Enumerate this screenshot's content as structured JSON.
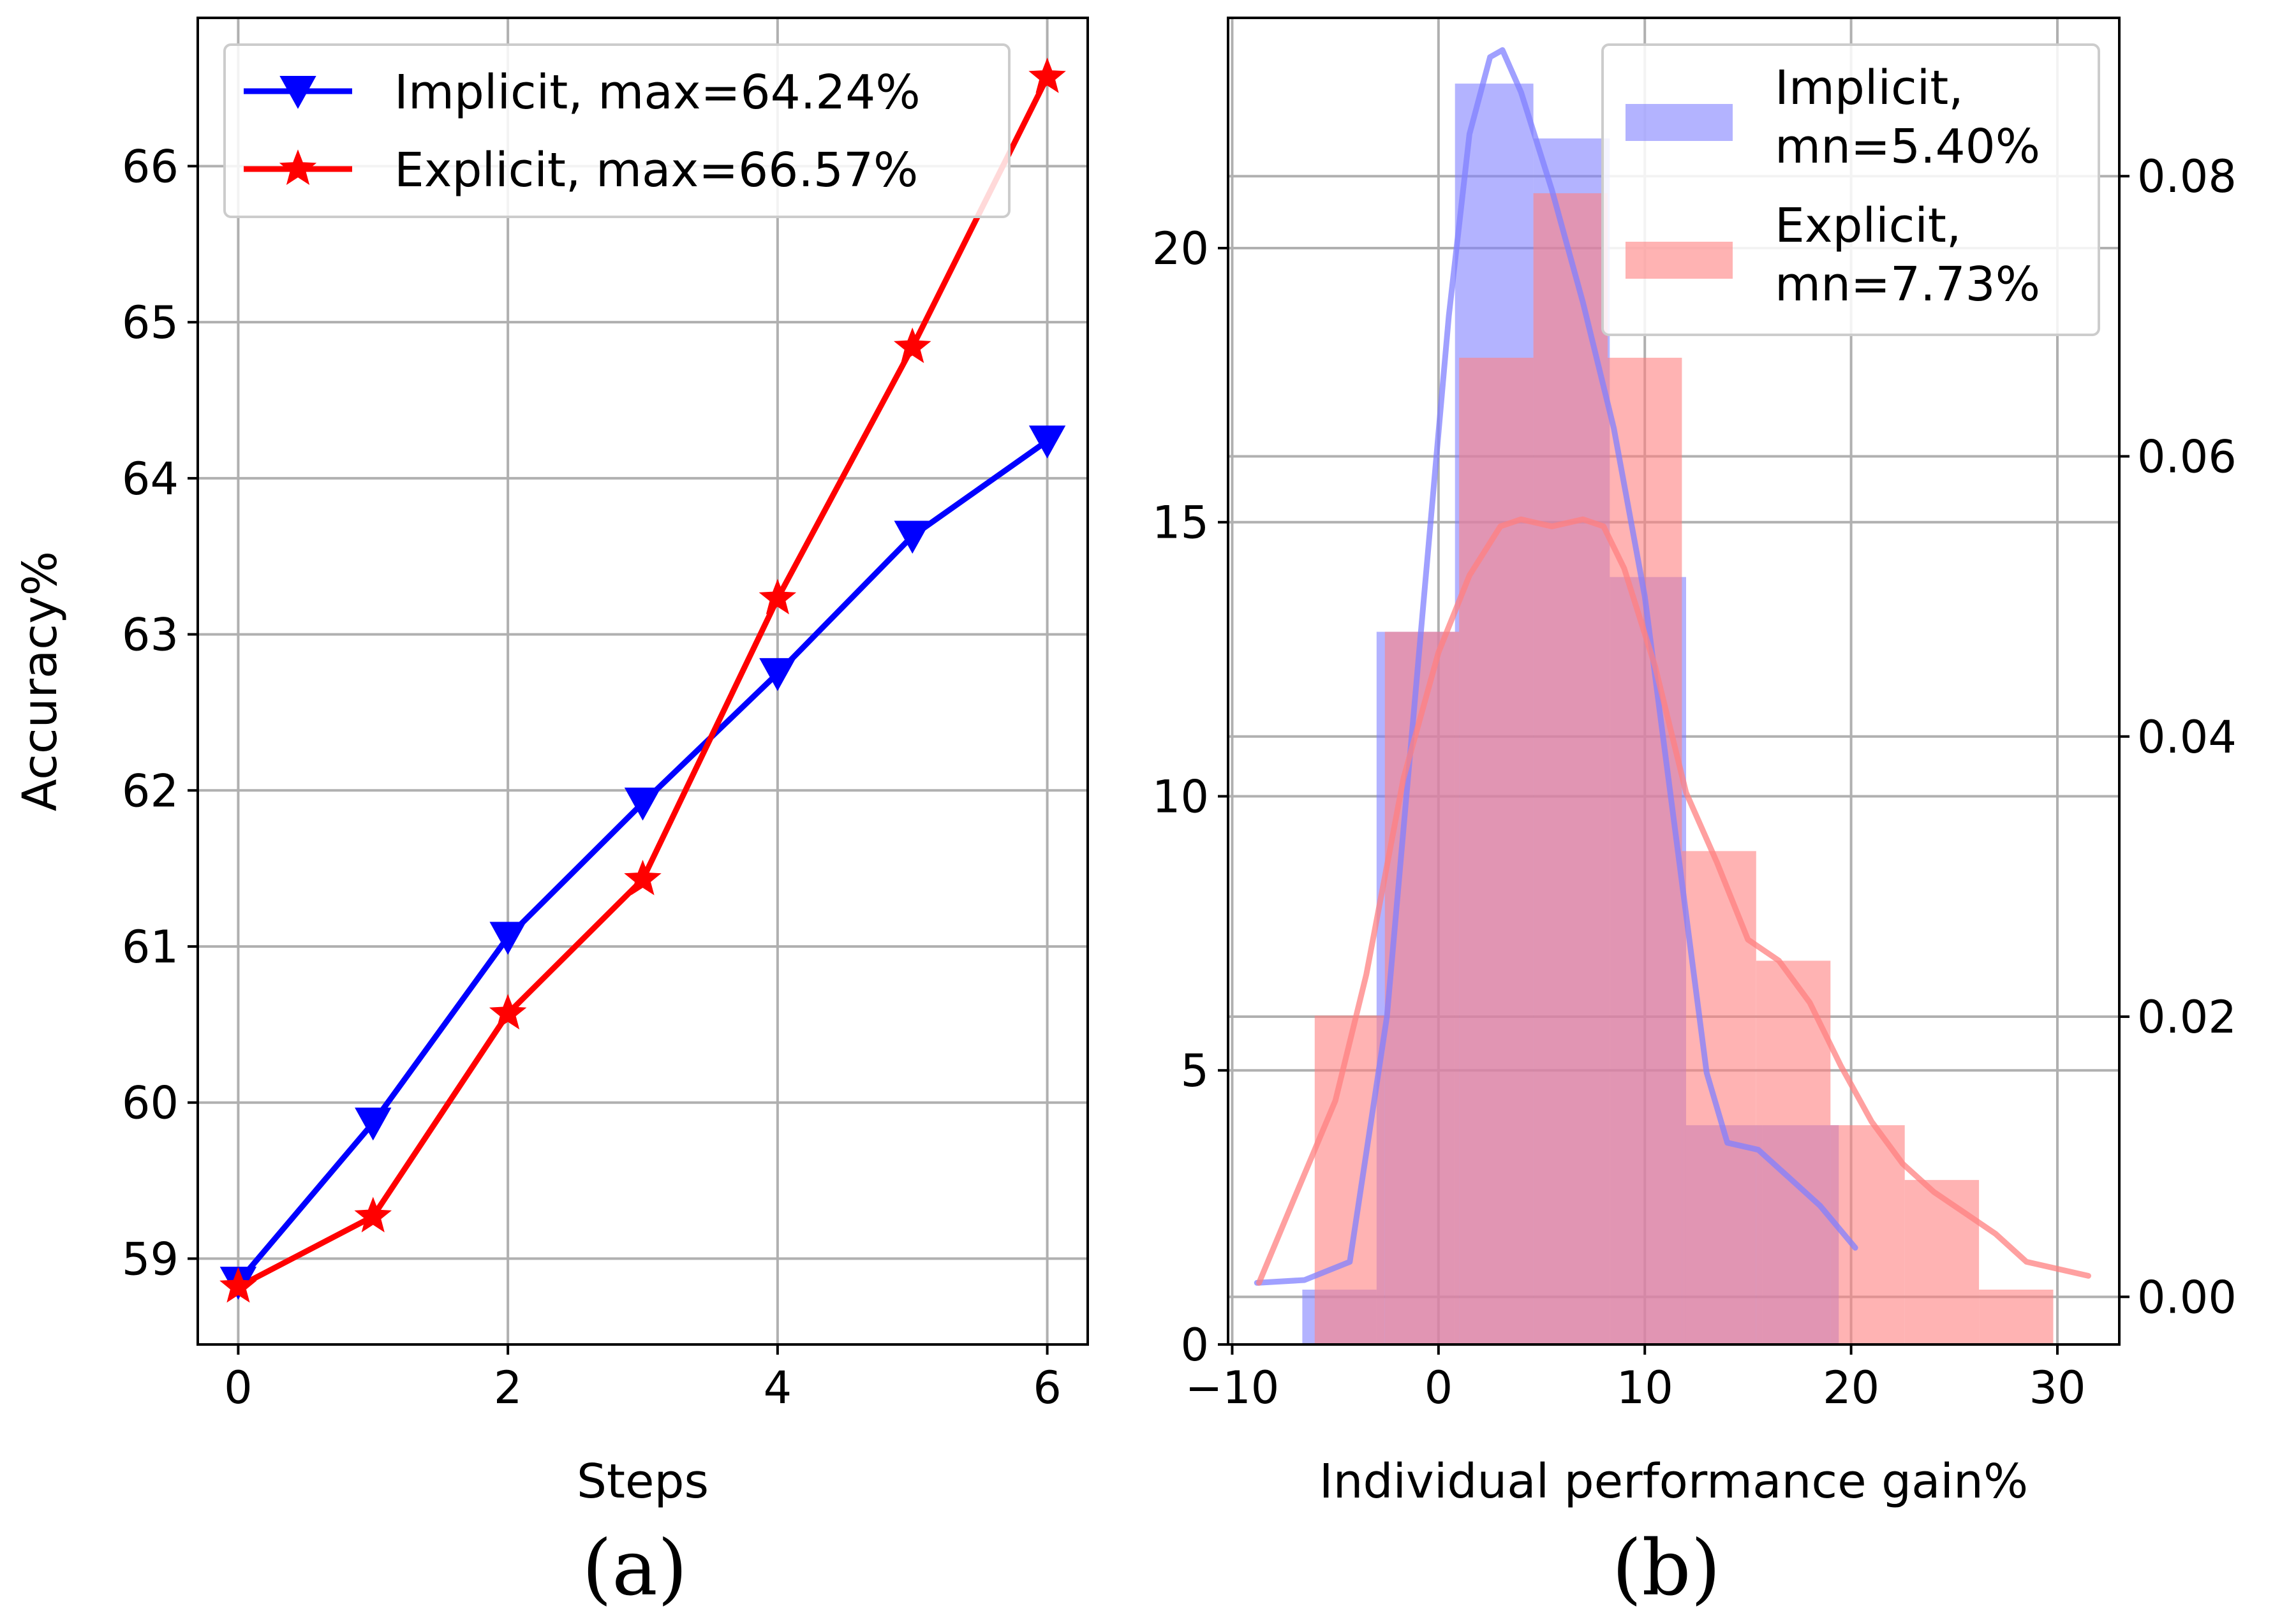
{
  "chart_data": [
    {
      "type": "line",
      "caption": "(a)",
      "xlabel": "Steps",
      "ylabel": "Accuracy%",
      "xlim": [
        -0.3,
        6.3
      ],
      "ylim": [
        58.45,
        66.95
      ],
      "xticks": [
        0,
        2,
        4,
        6
      ],
      "yticks": [
        59,
        60,
        61,
        62,
        63,
        64,
        65,
        66
      ],
      "grid": true,
      "legend_position": "top-left",
      "series": [
        {
          "name": "Implicit, max=64.24%",
          "color": "#0000ff",
          "marker": "triangle-down",
          "x": [
            0,
            1,
            2,
            3,
            4,
            5,
            6
          ],
          "y": [
            58.85,
            59.87,
            61.06,
            61.92,
            62.75,
            63.63,
            64.24
          ]
        },
        {
          "name": "Explicit, max=66.57%",
          "color": "#ff0000",
          "marker": "star",
          "x": [
            0,
            1,
            2,
            3,
            4,
            5,
            6
          ],
          "y": [
            58.82,
            59.27,
            60.57,
            61.43,
            63.23,
            64.84,
            66.57
          ]
        }
      ]
    },
    {
      "type": "histogram",
      "caption": "(b)",
      "xlabel": "Individual performance gain%",
      "ylabel": "",
      "xlim": [
        -10.2,
        33.0
      ],
      "ylim": [
        0,
        24.2
      ],
      "y2lim": [
        -0.0034,
        0.0913
      ],
      "xticks": [
        -10,
        0,
        10,
        20,
        30
      ],
      "xtick_labels": [
        "−10",
        "0",
        "10",
        "20",
        "30"
      ],
      "yticks": [
        0,
        5,
        10,
        15,
        20
      ],
      "y2ticks": [
        0.0,
        0.02,
        0.04,
        0.06,
        0.08
      ],
      "y2tick_labels": [
        "0.00",
        "0.02",
        "0.04",
        "0.06",
        "0.08"
      ],
      "grid": true,
      "legend_position": "top-right",
      "series": [
        {
          "name": "Implicit,\nmn=5.40%",
          "color": "#8080ff",
          "bin_edges": [
            -6.6,
            -3.0,
            0.8,
            4.6,
            8.3,
            12.0,
            15.7,
            19.4
          ],
          "counts": [
            1,
            13,
            23,
            22,
            14,
            4,
            4
          ],
          "density_x": [
            -8.8,
            -6.5,
            -4.3,
            -2.5,
            -1.0,
            0.5,
            1.5,
            2.5,
            3.1,
            4.0,
            5.5,
            7.0,
            8.5,
            10.0,
            11.5,
            13.0,
            14.0,
            15.5,
            17.0,
            18.5,
            20.2
          ],
          "density_y": [
            0.001,
            0.0012,
            0.0025,
            0.02,
            0.045,
            0.07,
            0.083,
            0.0885,
            0.089,
            0.086,
            0.079,
            0.071,
            0.062,
            0.05,
            0.033,
            0.016,
            0.011,
            0.0105,
            0.0085,
            0.0065,
            0.0035
          ]
        },
        {
          "name": "Explicit,\nmn=7.73%",
          "color": "#ff8080",
          "bin_edges": [
            -6.0,
            -2.6,
            1.0,
            4.6,
            8.2,
            11.8,
            15.4,
            19.0,
            22.6,
            26.2,
            29.8
          ],
          "counts": [
            6,
            13,
            18,
            21,
            18,
            9,
            7,
            4,
            3,
            1
          ],
          "density_x": [
            -8.7,
            -7.0,
            -5.0,
            -3.5,
            -1.7,
            0.0,
            1.5,
            3.0,
            4.0,
            5.5,
            7.0,
            8.0,
            9.0,
            10.5,
            12.0,
            13.5,
            15.0,
            16.5,
            18.0,
            19.5,
            21.0,
            22.5,
            24.0,
            25.5,
            27.0,
            28.5,
            30.0,
            31.5
          ],
          "density_y": [
            0.001,
            0.007,
            0.014,
            0.023,
            0.037,
            0.046,
            0.0515,
            0.055,
            0.0555,
            0.055,
            0.0555,
            0.055,
            0.052,
            0.045,
            0.036,
            0.031,
            0.0255,
            0.024,
            0.021,
            0.0165,
            0.0125,
            0.0095,
            0.0075,
            0.006,
            0.0045,
            0.0025,
            0.002,
            0.0015
          ]
        }
      ]
    }
  ]
}
